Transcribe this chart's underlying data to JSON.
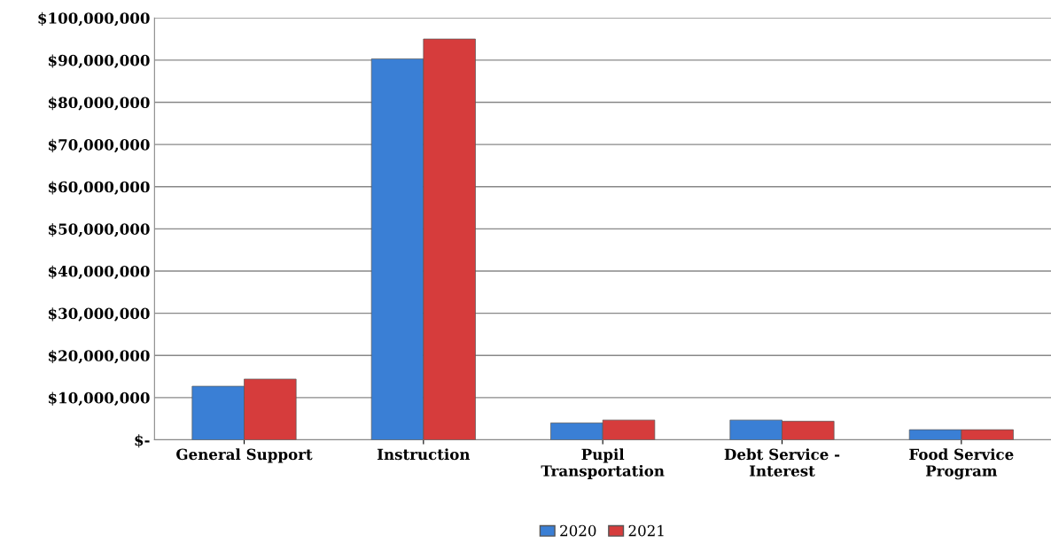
{
  "chart_data": {
    "type": "bar",
    "categories": [
      "General Support",
      "Instruction",
      "Pupil\nTransportation",
      "Debt Service -\nInterest",
      "Food Service\nProgram"
    ],
    "series": [
      {
        "name": "2020",
        "color": "#3a7fd5",
        "values": [
          12700000,
          90300000,
          4000000,
          4700000,
          2400000
        ]
      },
      {
        "name": "2021",
        "color": "#d63c3c",
        "values": [
          14400000,
          95000000,
          4700000,
          4400000,
          2400000
        ]
      }
    ],
    "ylim": [
      0,
      100000000
    ],
    "yticks": [
      {
        "value": 0,
        "label": "$-"
      },
      {
        "value": 10000000,
        "label": "$10,000,000"
      },
      {
        "value": 20000000,
        "label": "$20,000,000"
      },
      {
        "value": 30000000,
        "label": "$30,000,000"
      },
      {
        "value": 40000000,
        "label": "$40,000,000"
      },
      {
        "value": 50000000,
        "label": "$50,000,000"
      },
      {
        "value": 60000000,
        "label": "$60,000,000"
      },
      {
        "value": 70000000,
        "label": "$70,000,000"
      },
      {
        "value": 80000000,
        "label": "$80,000,000"
      },
      {
        "value": 90000000,
        "label": "$90,000,000"
      },
      {
        "value": 100000000,
        "label": "$100,000,000"
      }
    ],
    "grid": "y",
    "legend": "bottom"
  }
}
